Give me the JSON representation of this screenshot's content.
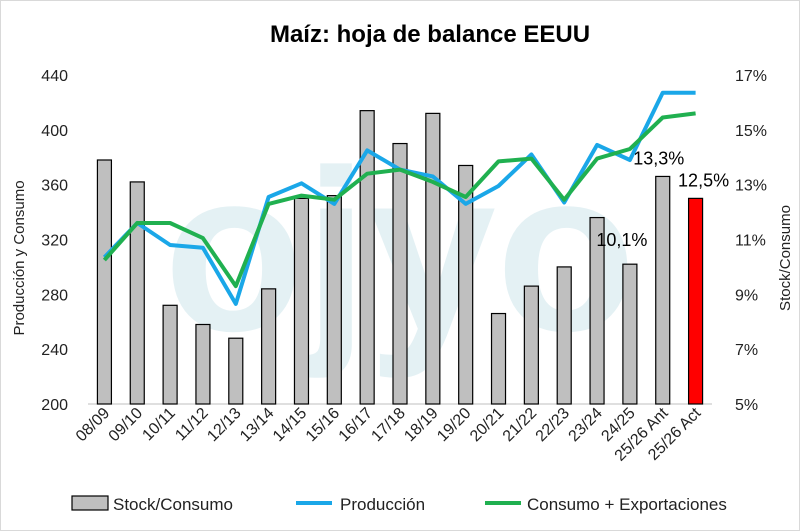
{
  "chart_data": {
    "type": "bar+line",
    "title": "Maíz:  hoja de balance EEUU",
    "xlabel": "",
    "ylabel_left": "Producción y Consumo",
    "ylabel_right": "Stock/Consumo",
    "categories": [
      "08/09",
      "09/10",
      "10/11",
      "11/12",
      "12/13",
      "13/14",
      "14/15",
      "15/16",
      "16/17",
      "17/18",
      "18/19",
      "19/20",
      "20/21",
      "21/22",
      "22/23",
      "23/24",
      "24/25",
      "25/26 Ant",
      "25/26 Act"
    ],
    "yticks_left": [
      "200",
      "240",
      "280",
      "320",
      "360",
      "400",
      "440"
    ],
    "yticks_right": [
      "5%",
      "7%",
      "9%",
      "11%",
      "13%",
      "15%",
      "17%"
    ],
    "ylim_left": [
      200,
      440
    ],
    "ylim_right": [
      5,
      17
    ],
    "bar_series": {
      "name": "Stock/Consumo",
      "axis": "right",
      "values": [
        13.9,
        13.1,
        8.6,
        7.9,
        7.4,
        9.2,
        12.5,
        12.6,
        15.7,
        14.5,
        15.6,
        13.7,
        8.3,
        9.3,
        10.0,
        11.8,
        10.1,
        13.3,
        12.5
      ],
      "color": "#bfbfbf",
      "highlight_color": "#ff0000",
      "highlight_index": 18
    },
    "line_series": [
      {
        "name": "Producción",
        "axis": "left",
        "color": "#1aa7e8",
        "values": [
          307,
          332,
          316,
          314,
          273,
          351,
          361,
          346,
          385,
          371,
          366,
          346,
          359,
          382,
          347,
          389,
          378,
          427,
          427
        ]
      },
      {
        "name": "Consumo + Exportaciones",
        "axis": "left",
        "color": "#20b050",
        "values": [
          305,
          332,
          332,
          321,
          286,
          346,
          352,
          349,
          368,
          371,
          362,
          351,
          377,
          379,
          349,
          379,
          386,
          409,
          412
        ]
      }
    ],
    "data_labels": [
      {
        "index": 16,
        "text": "10,1%"
      },
      {
        "index": 17,
        "text": "13,3%"
      },
      {
        "index": 18,
        "text": "12,5%"
      }
    ],
    "legend": {
      "position": "bottom",
      "items": [
        "Stock/Consumo",
        "Producción",
        "Consumo + Exportaciones"
      ]
    },
    "watermark": "ojyo"
  }
}
